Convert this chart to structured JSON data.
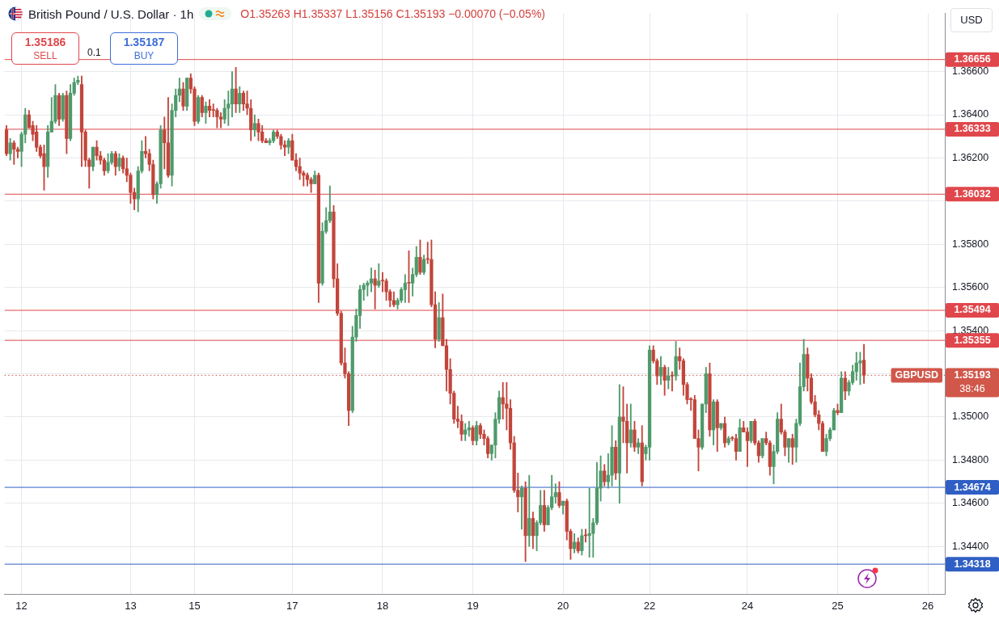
{
  "chart_data": {
    "type": "candlestick",
    "title": "British Pound / U.S. Dollar · 1h",
    "categories": [
      null,
      null,
      null,
      null,
      "12",
      null,
      null,
      null,
      null,
      null,
      null,
      null,
      null,
      null,
      null,
      null,
      null,
      null,
      null,
      null,
      null,
      null,
      null,
      null,
      null,
      null,
      null,
      null,
      null,
      null,
      null,
      null,
      null,
      "13",
      null,
      null,
      null,
      null,
      null,
      null,
      null,
      null,
      null,
      null,
      null,
      null,
      null,
      null,
      null,
      null,
      "15",
      null,
      null,
      null,
      null,
      null,
      null,
      null,
      null,
      null,
      null,
      null,
      null,
      null,
      null,
      null,
      null,
      null,
      null,
      null,
      null,
      null,
      null,
      null,
      null,
      null,
      "17",
      null,
      null,
      null,
      null,
      null,
      null,
      null,
      null,
      null,
      null,
      null,
      null,
      null,
      null,
      null,
      null,
      null,
      null,
      null,
      null,
      null,
      null,
      null,
      "18",
      null,
      null,
      null,
      null,
      null,
      null,
      null,
      null,
      null,
      null,
      null,
      null,
      null,
      null,
      null,
      null,
      null,
      null,
      null,
      null,
      null,
      null,
      null,
      "19",
      null,
      null,
      null,
      null,
      null,
      null,
      null,
      null,
      null,
      null,
      null,
      null,
      null,
      null,
      null,
      null,
      null,
      null,
      null,
      null,
      null,
      null,
      null,
      "20",
      null,
      null,
      null,
      null,
      null,
      null,
      null,
      null,
      null,
      null,
      null,
      null,
      null,
      null,
      null,
      null,
      null,
      null,
      null,
      null,
      null,
      null,
      "22",
      null,
      null,
      null,
      null,
      null,
      null,
      null,
      null,
      null,
      null,
      null,
      null,
      null,
      null,
      null,
      null,
      null,
      null,
      null,
      null,
      null,
      null,
      null,
      null,
      null,
      "24",
      null,
      null,
      null,
      null,
      null,
      null,
      null,
      null,
      null,
      null,
      null,
      null,
      null,
      null,
      null,
      null,
      null,
      null,
      null,
      null,
      null,
      null,
      null,
      "25",
      null,
      null,
      null,
      null,
      null,
      null,
      null,
      null,
      null,
      null,
      null,
      null,
      null,
      null,
      null,
      null,
      null,
      null,
      null,
      null,
      null,
      null,
      null,
      "26",
      null,
      null,
      null,
      null
    ],
    "ohlc": [
      [
        1.3633,
        1.3635,
        1.3621,
        1.3622
      ],
      [
        1.3622,
        1.3629,
        1.3619,
        1.3627
      ],
      [
        1.3627,
        1.3628,
        1.3617,
        1.3624
      ],
      [
        1.3624,
        1.3625,
        1.362,
        1.3623
      ],
      [
        1.3623,
        1.3632,
        1.3616,
        1.3631
      ],
      [
        1.3631,
        1.3643,
        1.3627,
        1.364
      ],
      [
        1.364,
        1.3642,
        1.3634,
        1.3634
      ],
      [
        1.3635,
        1.3637,
        1.3628,
        1.3631
      ],
      [
        1.3632,
        1.3635,
        1.3623,
        1.3625
      ],
      [
        1.3625,
        1.3626,
        1.362,
        1.3621
      ],
      [
        1.3622,
        1.3626,
        1.3605,
        1.3616
      ],
      [
        1.3616,
        1.3635,
        1.3611,
        1.3632
      ],
      [
        1.3632,
        1.3648,
        1.3632,
        1.3637
      ],
      [
        1.3637,
        1.3654,
        1.3636,
        1.3649
      ],
      [
        1.3649,
        1.365,
        1.3635,
        1.3638
      ],
      [
        1.3638,
        1.365,
        1.3637,
        1.3649
      ],
      [
        1.3649,
        1.3651,
        1.3622,
        1.3629
      ],
      [
        1.3629,
        1.3654,
        1.3628,
        1.365
      ],
      [
        1.365,
        1.3657,
        1.3649,
        1.3655
      ],
      [
        1.3655,
        1.3658,
        1.3654,
        1.3656
      ],
      [
        1.3654,
        1.3658,
        1.3616,
        1.3632
      ],
      [
        1.3632,
        1.3633,
        1.3616,
        1.3619
      ],
      [
        1.3619,
        1.362,
        1.3606,
        1.3616
      ],
      [
        1.3616,
        1.3625,
        1.3614,
        1.3625
      ],
      [
        1.3625,
        1.3628,
        1.3619,
        1.3621
      ],
      [
        1.3621,
        1.3623,
        1.3617,
        1.3619
      ],
      [
        1.3619,
        1.362,
        1.3612,
        1.3614
      ],
      [
        1.3614,
        1.3622,
        1.3613,
        1.3618
      ],
      [
        1.3618,
        1.3623,
        1.3617,
        1.3622
      ],
      [
        1.3622,
        1.3623,
        1.3612,
        1.3616
      ],
      [
        1.3616,
        1.3622,
        1.3614,
        1.362
      ],
      [
        1.362,
        1.3621,
        1.3613,
        1.3615
      ],
      [
        1.3615,
        1.362,
        1.3609,
        1.3612
      ],
      [
        1.3612,
        1.3613,
        1.3599,
        1.3604
      ],
      [
        1.3604,
        1.3606,
        1.3596,
        1.3601
      ],
      [
        1.3601,
        1.3616,
        1.3595,
        1.3614
      ],
      [
        1.3614,
        1.3628,
        1.3613,
        1.3623
      ],
      [
        1.3623,
        1.363,
        1.362,
        1.3622
      ],
      [
        1.3622,
        1.3624,
        1.3614,
        1.3617
      ],
      [
        1.3617,
        1.3619,
        1.3601,
        1.3603
      ],
      [
        1.3603,
        1.3609,
        1.3599,
        1.3608
      ],
      [
        1.3608,
        1.3635,
        1.3606,
        1.3633
      ],
      [
        1.3633,
        1.3639,
        1.3615,
        1.3627
      ],
      [
        1.3627,
        1.3648,
        1.3611,
        1.3612
      ],
      [
        1.3612,
        1.3645,
        1.3607,
        1.3642
      ],
      [
        1.3642,
        1.3652,
        1.3639,
        1.3649
      ],
      [
        1.3649,
        1.3657,
        1.3646,
        1.3652
      ],
      [
        1.3652,
        1.3655,
        1.3642,
        1.3644
      ],
      [
        1.3644,
        1.3657,
        1.3642,
        1.3657
      ],
      [
        1.3657,
        1.3659,
        1.365,
        1.3652
      ],
      [
        1.3652,
        1.3653,
        1.3635,
        1.3637
      ],
      [
        1.3637,
        1.3649,
        1.3636,
        1.3648
      ],
      [
        1.3648,
        1.3649,
        1.3639,
        1.3641
      ],
      [
        1.3641,
        1.3646,
        1.3636,
        1.3644
      ],
      [
        1.3644,
        1.3647,
        1.3639,
        1.3642
      ],
      [
        1.3642,
        1.3645,
        1.3639,
        1.3642
      ],
      [
        1.3642,
        1.3643,
        1.3634,
        1.3639
      ],
      [
        1.3639,
        1.3641,
        1.3634,
        1.3638
      ],
      [
        1.3638,
        1.3647,
        1.3636,
        1.3643
      ],
      [
        1.3643,
        1.3651,
        1.3635,
        1.3645
      ],
      [
        1.3645,
        1.366,
        1.3639,
        1.3652
      ],
      [
        1.3652,
        1.3662,
        1.3641,
        1.3645
      ],
      [
        1.3645,
        1.3653,
        1.3641,
        1.365
      ],
      [
        1.365,
        1.3651,
        1.3642,
        1.3645
      ],
      [
        1.3645,
        1.3651,
        1.364,
        1.3643
      ],
      [
        1.3643,
        1.3647,
        1.3628,
        1.3633
      ],
      [
        1.3633,
        1.364,
        1.363,
        1.3636
      ],
      [
        1.3636,
        1.3638,
        1.3628,
        1.3632
      ],
      [
        1.3632,
        1.3635,
        1.3627,
        1.3628
      ],
      [
        1.3628,
        1.3629,
        1.3627,
        1.3627
      ],
      [
        1.3627,
        1.3629,
        1.3626,
        1.3628
      ],
      [
        1.3628,
        1.3633,
        1.3627,
        1.3632
      ],
      [
        1.3632,
        1.3633,
        1.3629,
        1.363
      ],
      [
        1.363,
        1.3631,
        1.3624,
        1.3626
      ],
      [
        1.3626,
        1.3628,
        1.3621,
        1.3625
      ],
      [
        1.3625,
        1.3629,
        1.3622,
        1.3628
      ],
      [
        1.3628,
        1.3631,
        1.3619,
        1.3619
      ],
      [
        1.3619,
        1.3622,
        1.3614,
        1.3616
      ],
      [
        1.3616,
        1.362,
        1.361,
        1.3613
      ],
      [
        1.3613,
        1.3614,
        1.3607,
        1.3612
      ],
      [
        1.3612,
        1.3613,
        1.3607,
        1.361
      ],
      [
        1.361,
        1.3611,
        1.3604,
        1.3608
      ],
      [
        1.3608,
        1.3614,
        1.3608,
        1.3612
      ],
      [
        1.3612,
        1.3613,
        1.3553,
        1.3562
      ],
      [
        1.3562,
        1.359,
        1.3561,
        1.3586
      ],
      [
        1.3586,
        1.3597,
        1.3585,
        1.3591
      ],
      [
        1.3591,
        1.3607,
        1.359,
        1.3595
      ],
      [
        1.3595,
        1.3598,
        1.356,
        1.3564
      ],
      [
        1.3564,
        1.3571,
        1.3547,
        1.3548
      ],
      [
        1.3548,
        1.3549,
        1.3524,
        1.3525
      ],
      [
        1.3525,
        1.3532,
        1.3518,
        1.352
      ],
      [
        1.352,
        1.3521,
        1.3496,
        1.3503
      ],
      [
        1.3503,
        1.3542,
        1.3502,
        1.3537
      ],
      [
        1.3537,
        1.355,
        1.3535,
        1.3547
      ],
      [
        1.3547,
        1.3561,
        1.3541,
        1.3559
      ],
      [
        1.3559,
        1.3562,
        1.3554,
        1.3561
      ],
      [
        1.3561,
        1.3563,
        1.3556,
        1.3562
      ],
      [
        1.3562,
        1.3569,
        1.3558,
        1.3564
      ],
      [
        1.3564,
        1.3568,
        1.355,
        1.3561
      ],
      [
        1.3561,
        1.3571,
        1.356,
        1.3563
      ],
      [
        1.3563,
        1.3567,
        1.3558,
        1.3563
      ],
      [
        1.3563,
        1.3564,
        1.3554,
        1.3558
      ],
      [
        1.3558,
        1.3559,
        1.3551,
        1.3554
      ],
      [
        1.3554,
        1.3558,
        1.3551,
        1.3552
      ],
      [
        1.3552,
        1.3555,
        1.355,
        1.3554
      ],
      [
        1.3554,
        1.356,
        1.3553,
        1.3559
      ],
      [
        1.3559,
        1.3566,
        1.3553,
        1.3562
      ],
      [
        1.3562,
        1.3577,
        1.3553,
        1.3562
      ],
      [
        1.3562,
        1.3569,
        1.3556,
        1.3566
      ],
      [
        1.3566,
        1.3579,
        1.3565,
        1.3574
      ],
      [
        1.3574,
        1.3582,
        1.3566,
        1.3567
      ],
      [
        1.3567,
        1.3575,
        1.3566,
        1.3573
      ],
      [
        1.3573,
        1.3581,
        1.3571,
        1.3573
      ],
      [
        1.3573,
        1.3582,
        1.3551,
        1.3552
      ],
      [
        1.3552,
        1.3558,
        1.3532,
        1.3536
      ],
      [
        1.3536,
        1.3553,
        1.3535,
        1.3546
      ],
      [
        1.3546,
        1.3557,
        1.3533,
        1.3533
      ],
      [
        1.3533,
        1.3536,
        1.3512,
        1.3522
      ],
      [
        1.3522,
        1.3527,
        1.3506,
        1.3511
      ],
      [
        1.3511,
        1.3512,
        1.3497,
        1.3499
      ],
      [
        1.3499,
        1.3505,
        1.3495,
        1.3498
      ],
      [
        1.3498,
        1.3501,
        1.3489,
        1.3492
      ],
      [
        1.3492,
        1.3497,
        1.3489,
        1.3494
      ],
      [
        1.3494,
        1.3498,
        1.3491,
        1.3495
      ],
      [
        1.3495,
        1.3496,
        1.3487,
        1.3489
      ],
      [
        1.3489,
        1.3498,
        1.3487,
        1.3496
      ],
      [
        1.3496,
        1.3497,
        1.349,
        1.3492
      ],
      [
        1.3492,
        1.3494,
        1.3487,
        1.349
      ],
      [
        1.349,
        1.3491,
        1.3481,
        1.3483
      ],
      [
        1.3483,
        1.3487,
        1.348,
        1.3487
      ],
      [
        1.3487,
        1.3502,
        1.3481,
        1.3499
      ],
      [
        1.3499,
        1.3512,
        1.3497,
        1.3509
      ],
      [
        1.3509,
        1.3516,
        1.3499,
        1.3506
      ],
      [
        1.3506,
        1.3516,
        1.3494,
        1.3504
      ],
      [
        1.3504,
        1.3508,
        1.3485,
        1.3488
      ],
      [
        1.3488,
        1.3491,
        1.3465,
        1.3466
      ],
      [
        1.3466,
        1.3474,
        1.3456,
        1.3463
      ],
      [
        1.3463,
        1.3468,
        1.3448,
        1.3467
      ],
      [
        1.3467,
        1.347,
        1.3433,
        1.3445
      ],
      [
        1.3445,
        1.3473,
        1.344,
        1.3453
      ],
      [
        1.3453,
        1.3456,
        1.3439,
        1.3445
      ],
      [
        1.3445,
        1.3452,
        1.3438,
        1.3451
      ],
      [
        1.3451,
        1.3466,
        1.345,
        1.3459
      ],
      [
        1.3459,
        1.3466,
        1.3447,
        1.345
      ],
      [
        1.345,
        1.3459,
        1.345,
        1.3458
      ],
      [
        1.3458,
        1.3473,
        1.3457,
        1.3463
      ],
      [
        1.3463,
        1.3469,
        1.346,
        1.3465
      ],
      [
        1.3465,
        1.347,
        1.3458,
        1.3459
      ],
      [
        1.3459,
        1.3461,
        1.3455,
        1.3461
      ],
      [
        1.3461,
        1.3462,
        1.3443,
        1.3447
      ],
      [
        1.3447,
        1.3448,
        1.3434,
        1.3439
      ],
      [
        1.3439,
        1.3446,
        1.3437,
        1.3442
      ],
      [
        1.3442,
        1.3444,
        1.3437,
        1.3438
      ],
      [
        1.3438,
        1.3448,
        1.3436,
        1.3445
      ],
      [
        1.3445,
        1.3448,
        1.3442,
        1.3445
      ],
      [
        1.3445,
        1.3467,
        1.3435,
        1.3446
      ],
      [
        1.3446,
        1.3453,
        1.3435,
        1.3451
      ],
      [
        1.3451,
        1.3479,
        1.345,
        1.3467
      ],
      [
        1.3467,
        1.3482,
        1.3461,
        1.3475
      ],
      [
        1.3475,
        1.3478,
        1.3468,
        1.347
      ],
      [
        1.347,
        1.3483,
        1.3467,
        1.3473
      ],
      [
        1.3473,
        1.3496,
        1.3468,
        1.3486
      ],
      [
        1.3486,
        1.3489,
        1.3471,
        1.3474
      ],
      [
        1.3474,
        1.3515,
        1.346,
        1.35
      ],
      [
        1.35,
        1.3514,
        1.3488,
        1.3498
      ],
      [
        1.3498,
        1.3506,
        1.3474,
        1.3488
      ],
      [
        1.3488,
        1.3506,
        1.3486,
        1.3494
      ],
      [
        1.3494,
        1.3498,
        1.3484,
        1.3486
      ],
      [
        1.3486,
        1.349,
        1.3483,
        1.3488
      ],
      [
        1.3488,
        1.3496,
        1.3468,
        1.347
      ],
      [
        1.3483,
        1.3487,
        1.348,
        1.3486
      ],
      [
        1.3486,
        1.3533,
        1.348,
        1.3531
      ],
      [
        1.3531,
        1.3533,
        1.3525,
        1.3526
      ],
      [
        1.3526,
        1.3527,
        1.3515,
        1.3519
      ],
      [
        1.3519,
        1.3528,
        1.3515,
        1.3523
      ],
      [
        1.3523,
        1.3524,
        1.351,
        1.3517
      ],
      [
        1.3517,
        1.3523,
        1.3513,
        1.3519
      ],
      [
        1.3519,
        1.3521,
        1.3512,
        1.3519
      ],
      [
        1.3519,
        1.3535,
        1.3517,
        1.3528
      ],
      [
        1.3528,
        1.3532,
        1.3522,
        1.3526
      ],
      [
        1.3526,
        1.3527,
        1.351,
        1.3515
      ],
      [
        1.3515,
        1.3516,
        1.3506,
        1.3508
      ],
      [
        1.3508,
        1.3509,
        1.3503,
        1.3508
      ],
      [
        1.3508,
        1.351,
        1.349,
        1.349
      ],
      [
        1.349,
        1.3494,
        1.3475,
        1.3486
      ],
      [
        1.3486,
        1.3506,
        1.3485,
        1.3506
      ],
      [
        1.3506,
        1.3523,
        1.3502,
        1.352
      ],
      [
        1.352,
        1.3525,
        1.3491,
        1.3494
      ],
      [
        1.3494,
        1.3508,
        1.3487,
        1.3507
      ],
      [
        1.3507,
        1.3508,
        1.3484,
        1.3495
      ],
      [
        1.3495,
        1.3497,
        1.3494,
        1.3497
      ],
      [
        1.3497,
        1.35,
        1.3486,
        1.3488
      ],
      [
        1.3488,
        1.3491,
        1.3487,
        1.349
      ],
      [
        1.349,
        1.3491,
        1.3489,
        1.349
      ],
      [
        1.349,
        1.3492,
        1.348,
        1.3484
      ],
      [
        1.3484,
        1.3499,
        1.3484,
        1.3495
      ],
      [
        1.3495,
        1.3498,
        1.3493,
        1.3493
      ],
      [
        1.3493,
        1.3495,
        1.3477,
        1.3489
      ],
      [
        1.3489,
        1.3498,
        1.3488,
        1.3498
      ],
      [
        1.3498,
        1.3499,
        1.3487,
        1.3488
      ],
      [
        1.3488,
        1.3489,
        1.3479,
        1.3482
      ],
      [
        1.3482,
        1.349,
        1.3481,
        1.349
      ],
      [
        1.349,
        1.3493,
        1.3487,
        1.3488
      ],
      [
        1.3488,
        1.3489,
        1.3473,
        1.3477
      ],
      [
        1.3477,
        1.3487,
        1.3469,
        1.3484
      ],
      [
        1.3484,
        1.3502,
        1.3483,
        1.3499
      ],
      [
        1.3499,
        1.3506,
        1.3492,
        1.3493
      ],
      [
        1.3493,
        1.3494,
        1.3482,
        1.3486
      ],
      [
        1.3486,
        1.349,
        1.3479,
        1.349
      ],
      [
        1.349,
        1.3492,
        1.3478,
        1.3486
      ],
      [
        1.3486,
        1.3499,
        1.3479,
        1.3497
      ],
      [
        1.3497,
        1.3525,
        1.3496,
        1.3514
      ],
      [
        1.3514,
        1.3536,
        1.3512,
        1.3529
      ],
      [
        1.3529,
        1.3532,
        1.3512,
        1.3518
      ],
      [
        1.3518,
        1.352,
        1.3506,
        1.3507
      ],
      [
        1.3507,
        1.351,
        1.35,
        1.3501
      ],
      [
        1.3501,
        1.3503,
        1.3494,
        1.3497
      ],
      [
        1.3497,
        1.3498,
        1.3484,
        1.3484
      ],
      [
        1.3484,
        1.3492,
        1.3482,
        1.349
      ],
      [
        1.349,
        1.3495,
        1.3489,
        1.3494
      ],
      [
        1.3494,
        1.3504,
        1.3494,
        1.3503
      ],
      [
        1.3503,
        1.3506,
        1.3501,
        1.3502
      ],
      [
        1.3502,
        1.3521,
        1.3502,
        1.3518
      ],
      [
        1.3518,
        1.3521,
        1.3508,
        1.3512
      ],
      [
        1.3512,
        1.3517,
        1.351,
        1.3516
      ],
      [
        1.3516,
        1.3524,
        1.3515,
        1.3521
      ],
      [
        1.3521,
        1.353,
        1.3517,
        1.3525
      ],
      [
        1.3525,
        1.353,
        1.3515,
        1.3526
      ],
      [
        1.35263,
        1.35337,
        1.35156,
        1.35193
      ],
      null,
      null,
      null,
      null,
      null,
      null,
      null,
      null,
      null,
      null,
      null,
      null,
      null,
      null,
      null,
      null,
      null,
      null,
      null,
      null,
      null
    ],
    "colors": [
      "#c2453b",
      "#4f9a6b",
      "#c2453b",
      "#c2453b",
      "#4f9a6b",
      "#4f9a6b",
      "#c2453b",
      "#c2453b",
      "#c2453b",
      "#c2453b",
      "#c2453b",
      "#4f9a6b",
      "#4f9a6b",
      "#4f9a6b",
      "#c2453b",
      "#4f9a6b",
      "#c2453b",
      "#4f9a6b",
      "#4f9a6b",
      "#4f9a6b",
      "#c2453b",
      "#c2453b",
      "#c2453b",
      "#4f9a6b",
      "#c2453b",
      "#c2453b",
      "#c2453b",
      "#4f9a6b",
      "#4f9a6b",
      "#c2453b",
      "#4f9a6b",
      "#c2453b",
      "#c2453b",
      "#c2453b",
      "#c2453b",
      "#4f9a6b",
      "#4f9a6b",
      "#c2453b",
      "#c2453b",
      "#c2453b",
      "#4f9a6b",
      "#4f9a6b",
      "#c2453b",
      "#c2453b",
      "#4f9a6b",
      "#4f9a6b",
      "#4f9a6b",
      "#c2453b",
      "#4f9a6b",
      "#c2453b",
      "#c2453b",
      "#4f9a6b",
      "#c2453b",
      "#4f9a6b",
      "#c2453b",
      "#c2453b",
      "#c2453b",
      "#c2453b",
      "#4f9a6b",
      "#4f9a6b",
      "#4f9a6b",
      "#c2453b",
      "#4f9a6b",
      "#c2453b",
      "#c2453b",
      "#c2453b",
      "#4f9a6b",
      "#c2453b",
      "#c2453b",
      "#c2453b",
      "#4f9a6b",
      "#4f9a6b",
      "#c2453b",
      "#c2453b",
      "#c2453b",
      "#4f9a6b",
      "#c2453b",
      "#c2453b",
      "#c2453b",
      "#c2453b",
      "#c2453b",
      "#c2453b",
      "#4f9a6b",
      "#c2453b",
      "#4f9a6b",
      "#4f9a6b",
      "#4f9a6b",
      "#c2453b",
      "#c2453b",
      "#c2453b",
      "#c2453b",
      "#c2453b",
      "#4f9a6b",
      "#4f9a6b",
      "#4f9a6b",
      "#4f9a6b",
      "#4f9a6b",
      "#4f9a6b",
      "#c2453b",
      "#4f9a6b",
      "#c2453b",
      "#c2453b",
      "#c2453b",
      "#c2453b",
      "#4f9a6b",
      "#4f9a6b",
      "#4f9a6b",
      "#c2453b",
      "#4f9a6b",
      "#4f9a6b",
      "#c2453b",
      "#4f9a6b",
      "#c2453b",
      "#c2453b",
      "#c2453b",
      "#4f9a6b",
      "#c2453b",
      "#c2453b",
      "#c2453b",
      "#c2453b",
      "#c2453b",
      "#c2453b",
      "#4f9a6b",
      "#4f9a6b",
      "#c2453b",
      "#4f9a6b",
      "#c2453b",
      "#c2453b",
      "#c2453b",
      "#4f9a6b",
      "#4f9a6b",
      "#4f9a6b",
      "#c2453b",
      "#c2453b",
      "#c2453b",
      "#c2453b",
      "#c2453b",
      "#4f9a6b",
      "#c2453b",
      "#4f9a6b",
      "#c2453b",
      "#4f9a6b",
      "#4f9a6b",
      "#c2453b",
      "#4f9a6b",
      "#4f9a6b",
      "#4f9a6b",
      "#c2453b",
      "#4f9a6b",
      "#c2453b",
      "#c2453b",
      "#4f9a6b",
      "#c2453b",
      "#4f9a6b",
      "#c2453b",
      "#4f9a6b",
      "#4f9a6b",
      "#4f9a6b",
      "#4f9a6b",
      "#c2453b",
      "#4f9a6b",
      "#4f9a6b",
      "#c2453b",
      "#4f9a6b",
      "#c2453b",
      "#c2453b",
      "#4f9a6b",
      "#c2453b",
      "#4f9a6b",
      "#c2453b",
      "#4f9a6b",
      "#4f9a6b",
      "#c2453b",
      "#c2453b",
      "#4f9a6b",
      "#c2453b",
      "#4f9a6b",
      "#c2453b",
      "#4f9a6b",
      "#c2453b",
      "#c2453b",
      "#c2453b",
      "#c2453b",
      "#c2453b",
      "#c2453b",
      "#4f9a6b",
      "#4f9a6b",
      "#c2453b",
      "#4f9a6b",
      "#c2453b",
      "#4f9a6b",
      "#c2453b",
      "#4f9a6b",
      "#c2453b",
      "#c2453b",
      "#4f9a6b",
      "#c2453b",
      "#c2453b",
      "#4f9a6b",
      "#c2453b",
      "#c2453b",
      "#4f9a6b",
      "#c2453b",
      "#c2453b",
      "#4f9a6b",
      "#4f9a6b",
      "#c2453b",
      "#c2453b",
      "#4f9a6b",
      "#c2453b",
      "#4f9a6b",
      "#4f9a6b",
      "#4f9a6b",
      "#c2453b",
      "#c2453b",
      "#c2453b",
      "#c2453b",
      "#c2453b",
      "#4f9a6b",
      "#4f9a6b",
      "#4f9a6b",
      "#c2453b",
      "#4f9a6b",
      "#c2453b",
      "#4f9a6b",
      "#4f9a6b",
      "#4f9a6b",
      "#4f9a6b",
      "#c2453b",
      null,
      null,
      null,
      null,
      null,
      null,
      null,
      null,
      null,
      null,
      null,
      null,
      null,
      null,
      null,
      null,
      null,
      null,
      null,
      null,
      null
    ],
    "ylim": [
      1.3418,
      1.3687
    ],
    "yticks": [
      {
        "value": 1.344,
        "label": "1.34400"
      },
      {
        "value": 1.346,
        "label": "1.34600"
      },
      {
        "value": 1.348,
        "label": "1.34800"
      },
      {
        "value": 1.35,
        "label": "1.35000"
      },
      {
        "value": 1.352,
        "label": null
      },
      {
        "value": 1.354,
        "label": "1.35400"
      },
      {
        "value": 1.356,
        "label": "1.35600"
      },
      {
        "value": 1.358,
        "label": "1.35800"
      },
      {
        "value": 1.36,
        "label": null
      },
      {
        "value": 1.362,
        "label": "1.36200"
      },
      {
        "value": 1.364,
        "label": "1.36400"
      },
      {
        "value": 1.366,
        "label": "1.36600"
      }
    ],
    "grid": true,
    "ref_lines": [
      {
        "axis": "y",
        "value": 1.36656,
        "label": "1.36656",
        "color": "#e0474c"
      },
      {
        "axis": "y",
        "value": 1.36333,
        "label": "1.36333",
        "color": "#e0474c"
      },
      {
        "axis": "y",
        "value": 1.36032,
        "label": "1.36032",
        "color": "#e0474c"
      },
      {
        "axis": "y",
        "value": 1.35494,
        "label": "1.35494",
        "color": "#e0474c"
      },
      {
        "axis": "y",
        "value": 1.35355,
        "label": "1.35355",
        "color": "#e0474c"
      },
      {
        "axis": "y",
        "value": 1.34674,
        "label": "1.34674",
        "color": "#2f5fc4"
      },
      {
        "axis": "y",
        "value": 1.34318,
        "label": "1.34318",
        "color": "#2f5fc4"
      },
      {
        "axis": "y",
        "value": 1.35193,
        "label": "1.35193",
        "color": "#d0574a",
        "line_style": "dotted"
      }
    ],
    "annotations": [
      "O1.35263 H1.35337 L1.35156 C1.35193 −0.00070 (−0.05%)",
      "1.35186",
      "SELL",
      "0.1",
      "1.35187",
      "BUY",
      "USD",
      {
        "text": "GBPUSD",
        "y": 1.35193
      },
      "38:46"
    ]
  }
}
